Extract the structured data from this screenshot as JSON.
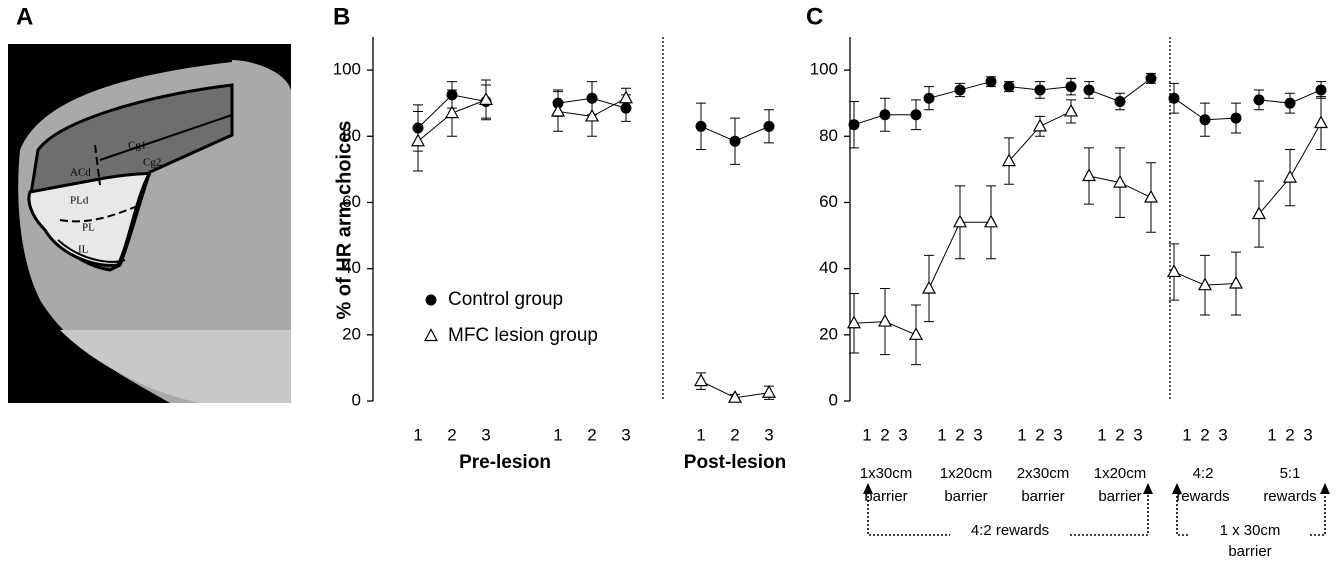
{
  "panel_labels": [
    "A",
    "B",
    "C"
  ],
  "brain_labels": [
    "Cg1",
    "Cg2",
    "ACd",
    "PLd",
    "PL",
    "IL"
  ],
  "chart_data": [
    {
      "type": "line",
      "y_label": "% of HR arm choices",
      "categories": [
        "1",
        "2",
        "3",
        "1",
        "2",
        "3",
        "1",
        "2",
        "3"
      ],
      "group_labels": [
        "Pre-lesion",
        "Post-lesion"
      ],
      "ylim": [
        0,
        110
      ],
      "yticks": [
        0,
        20,
        40,
        60,
        80,
        100
      ],
      "series": [
        {
          "name": "Control group",
          "color": "#000000",
          "marker": "circle",
          "values": [
            82.5,
            92.5,
            90.5,
            90,
            91.5,
            88.5,
            83,
            78.5,
            83
          ],
          "errors": [
            7,
            4,
            5,
            4,
            5,
            4,
            7,
            7,
            5
          ]
        },
        {
          "name": "MFC lesion group",
          "color": "#000000",
          "marker": "triangle",
          "values": [
            78.5,
            87,
            91,
            87.5,
            86,
            91.5,
            6,
            1,
            2.5
          ],
          "errors": [
            9,
            7,
            6,
            6,
            6,
            3,
            2.5,
            1,
            2
          ]
        }
      ]
    },
    {
      "type": "line",
      "categories": [
        "1",
        "2",
        "3",
        "1",
        "2",
        "3",
        "1",
        "2",
        "3",
        "1",
        "2",
        "3",
        "1",
        "2",
        "3",
        "1",
        "2",
        "3"
      ],
      "group_labels": [
        [
          "1x30cm",
          "barrier"
        ],
        [
          "1x20cm",
          "barrier"
        ],
        [
          "2x30cm",
          "barrier"
        ],
        [
          "1x20cm",
          "barrier"
        ],
        [
          "4:2",
          "rewards"
        ],
        [
          "5:1",
          "rewards"
        ]
      ],
      "annotations": [
        [
          "4:2 rewards"
        ],
        [
          "1 x 30cm",
          "barrier"
        ]
      ],
      "ylim": [
        0,
        110
      ],
      "yticks": [
        0,
        20,
        40,
        60,
        80,
        100
      ],
      "series": [
        {
          "color": "#000000",
          "marker": "circle",
          "values": [
            83.5,
            86.5,
            86.5,
            91.5,
            94,
            96.5,
            95,
            94,
            95,
            94,
            90.5,
            97.5,
            91.5,
            85,
            85.5,
            91,
            90,
            94
          ],
          "errors": [
            7,
            5,
            4.5,
            3.5,
            2,
            1.5,
            1.5,
            2.5,
            2.5,
            2.5,
            2.5,
            1.5,
            4.5,
            5,
            4.5,
            3,
            3,
            2.5
          ]
        },
        {
          "color": "#000000",
          "marker": "triangle",
          "values": [
            23.5,
            24,
            20,
            34,
            54,
            54,
            72.5,
            83,
            87.5,
            68,
            66,
            61.5,
            39,
            35,
            35.5,
            56.5,
            67.5,
            84
          ],
          "errors": [
            9,
            10,
            9,
            10,
            11,
            11,
            7,
            3,
            3.5,
            8.5,
            10.5,
            10.5,
            8.5,
            9,
            9.5,
            10,
            8.5,
            8
          ]
        }
      ]
    }
  ]
}
